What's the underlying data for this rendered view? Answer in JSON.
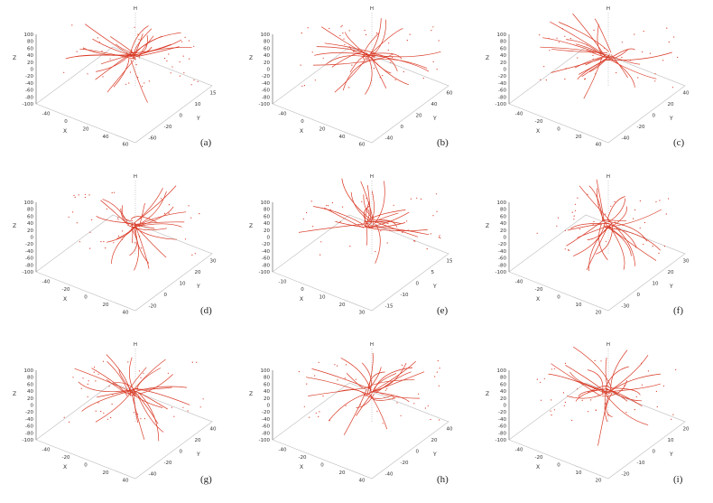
{
  "colors": {
    "trajectory": "#d93a26",
    "axis": "#555555",
    "grid": "#bbbbbb"
  },
  "z_ticks": [
    "100",
    "80",
    "60",
    "40",
    "20",
    "0",
    "-20",
    "-40",
    "-60",
    "-80",
    "-100"
  ],
  "panels": [
    {
      "label": "(a)",
      "x_ticks": [
        "-40",
        "0",
        "20",
        "40",
        "60"
      ],
      "y_ticks": [
        "-60",
        "-20",
        "0",
        "10",
        "15"
      ],
      "z_label": "Z",
      "x_label": "X",
      "y_label": "Y",
      "top_label": "H",
      "chart_data": {
        "type": "scatter",
        "title": "",
        "xlabel": "X",
        "ylabel": "Y",
        "zlabel": "Z",
        "zlim": [
          -100,
          100
        ],
        "ylim": [
          -60,
          15
        ],
        "xlim": [
          -60,
          60
        ]
      }
    },
    {
      "label": "(b)",
      "x_ticks": [
        "-40",
        "0",
        "20",
        "40",
        "60"
      ],
      "y_ticks": [
        "-40",
        "0",
        "20",
        "40",
        "60"
      ],
      "z_label": "Z",
      "x_label": "X",
      "y_label": "Y",
      "top_label": "H",
      "chart_data": {
        "type": "scatter",
        "title": "",
        "xlabel": "X",
        "ylabel": "Y",
        "zlabel": "Z",
        "zlim": [
          -100,
          100
        ],
        "ylim": [
          -60,
          60
        ],
        "xlim": [
          -60,
          60
        ]
      }
    },
    {
      "label": "(c)",
      "x_ticks": [
        "-40",
        "-20",
        "0",
        "20",
        "40"
      ],
      "y_ticks": [
        "-40",
        "-20",
        "0",
        "20",
        "40"
      ],
      "z_label": "Z",
      "x_label": "X",
      "y_label": "Y",
      "top_label": "H",
      "chart_data": {
        "type": "scatter",
        "title": "",
        "xlabel": "X",
        "ylabel": "Y",
        "zlabel": "Z",
        "zlim": [
          -100,
          100
        ],
        "ylim": [
          -60,
          40
        ],
        "xlim": [
          -60,
          60
        ]
      }
    },
    {
      "label": "(d)",
      "x_ticks": [
        "-40",
        "-20",
        "0",
        "20",
        "40"
      ],
      "y_ticks": [
        "-20",
        "0",
        "10",
        "20",
        "30"
      ],
      "z_label": "Z",
      "x_label": "X",
      "y_label": "Y",
      "top_label": "H",
      "chart_data": {
        "type": "scatter",
        "title": "",
        "xlabel": "X",
        "ylabel": "Y",
        "zlabel": "Z",
        "zlim": [
          -100,
          100
        ],
        "ylim": [
          -20,
          30
        ],
        "xlim": [
          -60,
          60
        ]
      }
    },
    {
      "label": "(e)",
      "x_ticks": [
        "-10",
        "0",
        "10",
        "20",
        "30"
      ],
      "y_ticks": [
        "-15",
        "-10",
        "0",
        "5",
        "15"
      ],
      "z_label": "Z",
      "x_label": "X",
      "y_label": "Y",
      "top_label": "H",
      "chart_data": {
        "type": "scatter",
        "title": "",
        "xlabel": "X",
        "ylabel": "Y",
        "zlabel": "Z",
        "zlim": [
          -100,
          100
        ],
        "ylim": [
          -15,
          15
        ],
        "xlim": [
          -10,
          40
        ]
      }
    },
    {
      "label": "(f)",
      "x_ticks": [
        "-40",
        "-20",
        "0",
        "10",
        "20"
      ],
      "y_ticks": [
        "-30",
        "0",
        "10",
        "20",
        "30"
      ],
      "z_label": "Z",
      "x_label": "X",
      "y_label": "Y",
      "top_label": "H",
      "chart_data": {
        "type": "scatter",
        "title": "",
        "xlabel": "X",
        "ylabel": "Y",
        "zlabel": "Z",
        "zlim": [
          -100,
          100
        ],
        "ylim": [
          -30,
          30
        ],
        "xlim": [
          -60,
          40
        ]
      }
    },
    {
      "label": "(g)",
      "x_ticks": [
        "-40",
        "-20",
        "0",
        "20",
        "40"
      ],
      "y_ticks": [
        "-40",
        "-20",
        "0",
        "20",
        "40"
      ],
      "z_label": "Z",
      "x_label": "X",
      "y_label": "Y",
      "top_label": "H",
      "chart_data": {
        "type": "scatter",
        "title": "",
        "xlabel": "X",
        "ylabel": "Y",
        "zlabel": "Z",
        "zlim": [
          -100,
          100
        ],
        "ylim": [
          -60,
          60
        ],
        "xlim": [
          -60,
          60
        ]
      }
    },
    {
      "label": "(h)",
      "x_ticks": [
        "-40",
        "-20",
        "0",
        "20",
        "40"
      ],
      "y_ticks": [
        "-40",
        "-20",
        "0",
        "20",
        "40"
      ],
      "z_label": "Z",
      "x_label": "X",
      "y_label": "Y",
      "top_label": "H",
      "chart_data": {
        "type": "scatter",
        "title": "",
        "xlabel": "X",
        "ylabel": "Y",
        "zlabel": "Z",
        "zlim": [
          -100,
          100
        ],
        "ylim": [
          -60,
          60
        ],
        "xlim": [
          -60,
          60
        ]
      }
    },
    {
      "label": "(i)",
      "x_ticks": [
        "-40",
        "-20",
        "0",
        "10",
        "20"
      ],
      "y_ticks": [
        "-20",
        "-10",
        "0",
        "10",
        "20"
      ],
      "z_label": "Z",
      "x_label": "X",
      "y_label": "Y",
      "top_label": "H",
      "chart_data": {
        "type": "scatter",
        "title": "",
        "xlabel": "X",
        "ylabel": "Y",
        "zlabel": "Z",
        "zlim": [
          -100,
          100
        ],
        "ylim": [
          -30,
          30
        ],
        "xlim": [
          -60,
          20
        ]
      }
    }
  ]
}
